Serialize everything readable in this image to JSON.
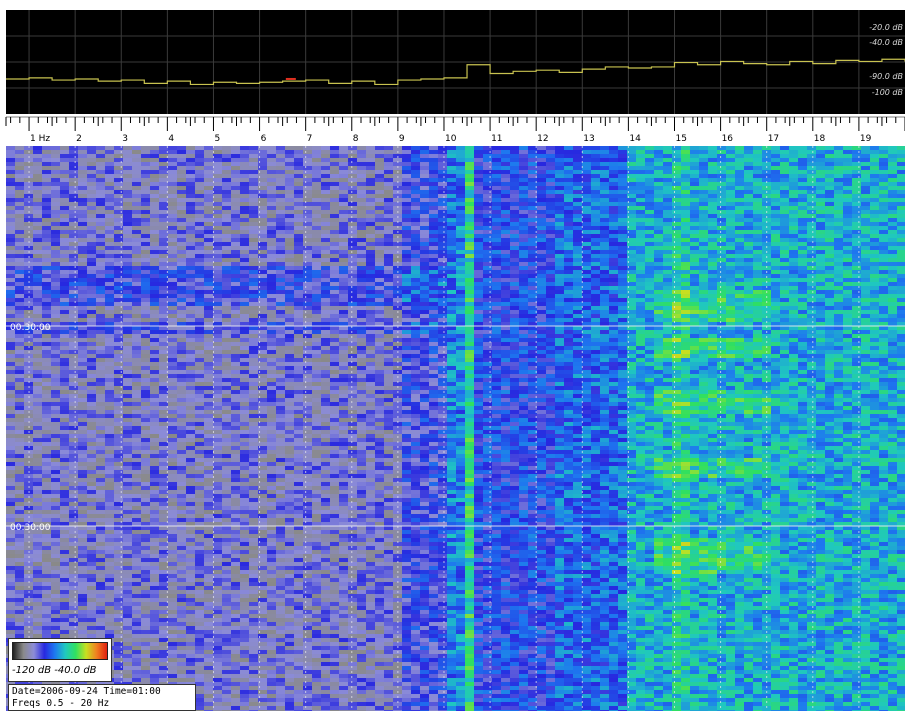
{
  "chart_data": [
    {
      "type": "line",
      "panel": "spectrum-trace",
      "background": "#000000",
      "line_color": "#c8c250",
      "peak_marker_color": "#e03020",
      "grid": true,
      "x": [
        0.5,
        1,
        1.5,
        2,
        2.5,
        3,
        3.5,
        4,
        4.5,
        5,
        5.5,
        6,
        6.5,
        7,
        7.5,
        8,
        8.5,
        9,
        9.5,
        10,
        10.5,
        11,
        11.5,
        12,
        12.5,
        13,
        13.5,
        14,
        14.5,
        15,
        15.5,
        16,
        16.5,
        17,
        17.5,
        18,
        18.5,
        19,
        19.5,
        20
      ],
      "y": [
        -73,
        -72,
        -74,
        -73,
        -75,
        -74,
        -77,
        -75,
        -78,
        -76,
        -77,
        -76,
        -75,
        -74,
        -77,
        -75,
        -78,
        -74,
        -73,
        -72,
        -60,
        -68,
        -66,
        -65,
        -67,
        -64,
        -62,
        -63,
        -62,
        -58,
        -60,
        -57,
        -59,
        -60,
        -57,
        -59,
        -56,
        -57,
        -55,
        -57
      ],
      "ylim": [
        -105,
        -10
      ],
      "y_tick_labels": [
        "-20.0 dB",
        "-40.0 dB",
        "-90.0 dB",
        "-100 dB"
      ]
    },
    {
      "type": "heatmap",
      "panel": "waterfall",
      "x_axis_unit": "Hz",
      "x_range": [
        0.5,
        20
      ],
      "x_ticks": [
        1,
        2,
        3,
        4,
        5,
        6,
        7,
        8,
        9,
        10,
        11,
        12,
        13,
        14,
        15,
        16,
        17,
        18,
        19
      ],
      "x_tick_labels": [
        "1 Hz",
        "2",
        "3",
        "4",
        "5",
        "6",
        "7",
        "8",
        "9",
        "10",
        "11",
        "12",
        "13",
        "14",
        "15",
        "16",
        "17",
        "18",
        "19"
      ],
      "time_markers": [
        "00:30:00",
        "00:30:00"
      ],
      "color_scale": {
        "min_label": "-120 dB",
        "max_label": "-40.0 dB",
        "colors": [
          "#202020",
          "#8a8a8a",
          "#8c8cd8",
          "#2828e0",
          "#1e78f0",
          "#20c8c0",
          "#30e060",
          "#c8e020",
          "#f08020",
          "#e02010"
        ]
      },
      "band_levels": [
        {
          "from": 0.5,
          "to": 9.0,
          "level": 0.22
        },
        {
          "from": 9.0,
          "to": 10.0,
          "level": 0.32
        },
        {
          "from": 10.0,
          "to": 10.4,
          "level": 0.45
        },
        {
          "from": 10.4,
          "to": 10.7,
          "level": 0.62
        },
        {
          "from": 10.7,
          "to": 12.5,
          "level": 0.36
        },
        {
          "from": 12.5,
          "to": 14.0,
          "level": 0.42
        },
        {
          "from": 14.0,
          "to": 20.0,
          "level": 0.52
        }
      ]
    }
  ],
  "info": {
    "line1": "Date=2006-09-24 Time=01:00",
    "line2": "Freqs 0.5 - 20 Hz"
  }
}
